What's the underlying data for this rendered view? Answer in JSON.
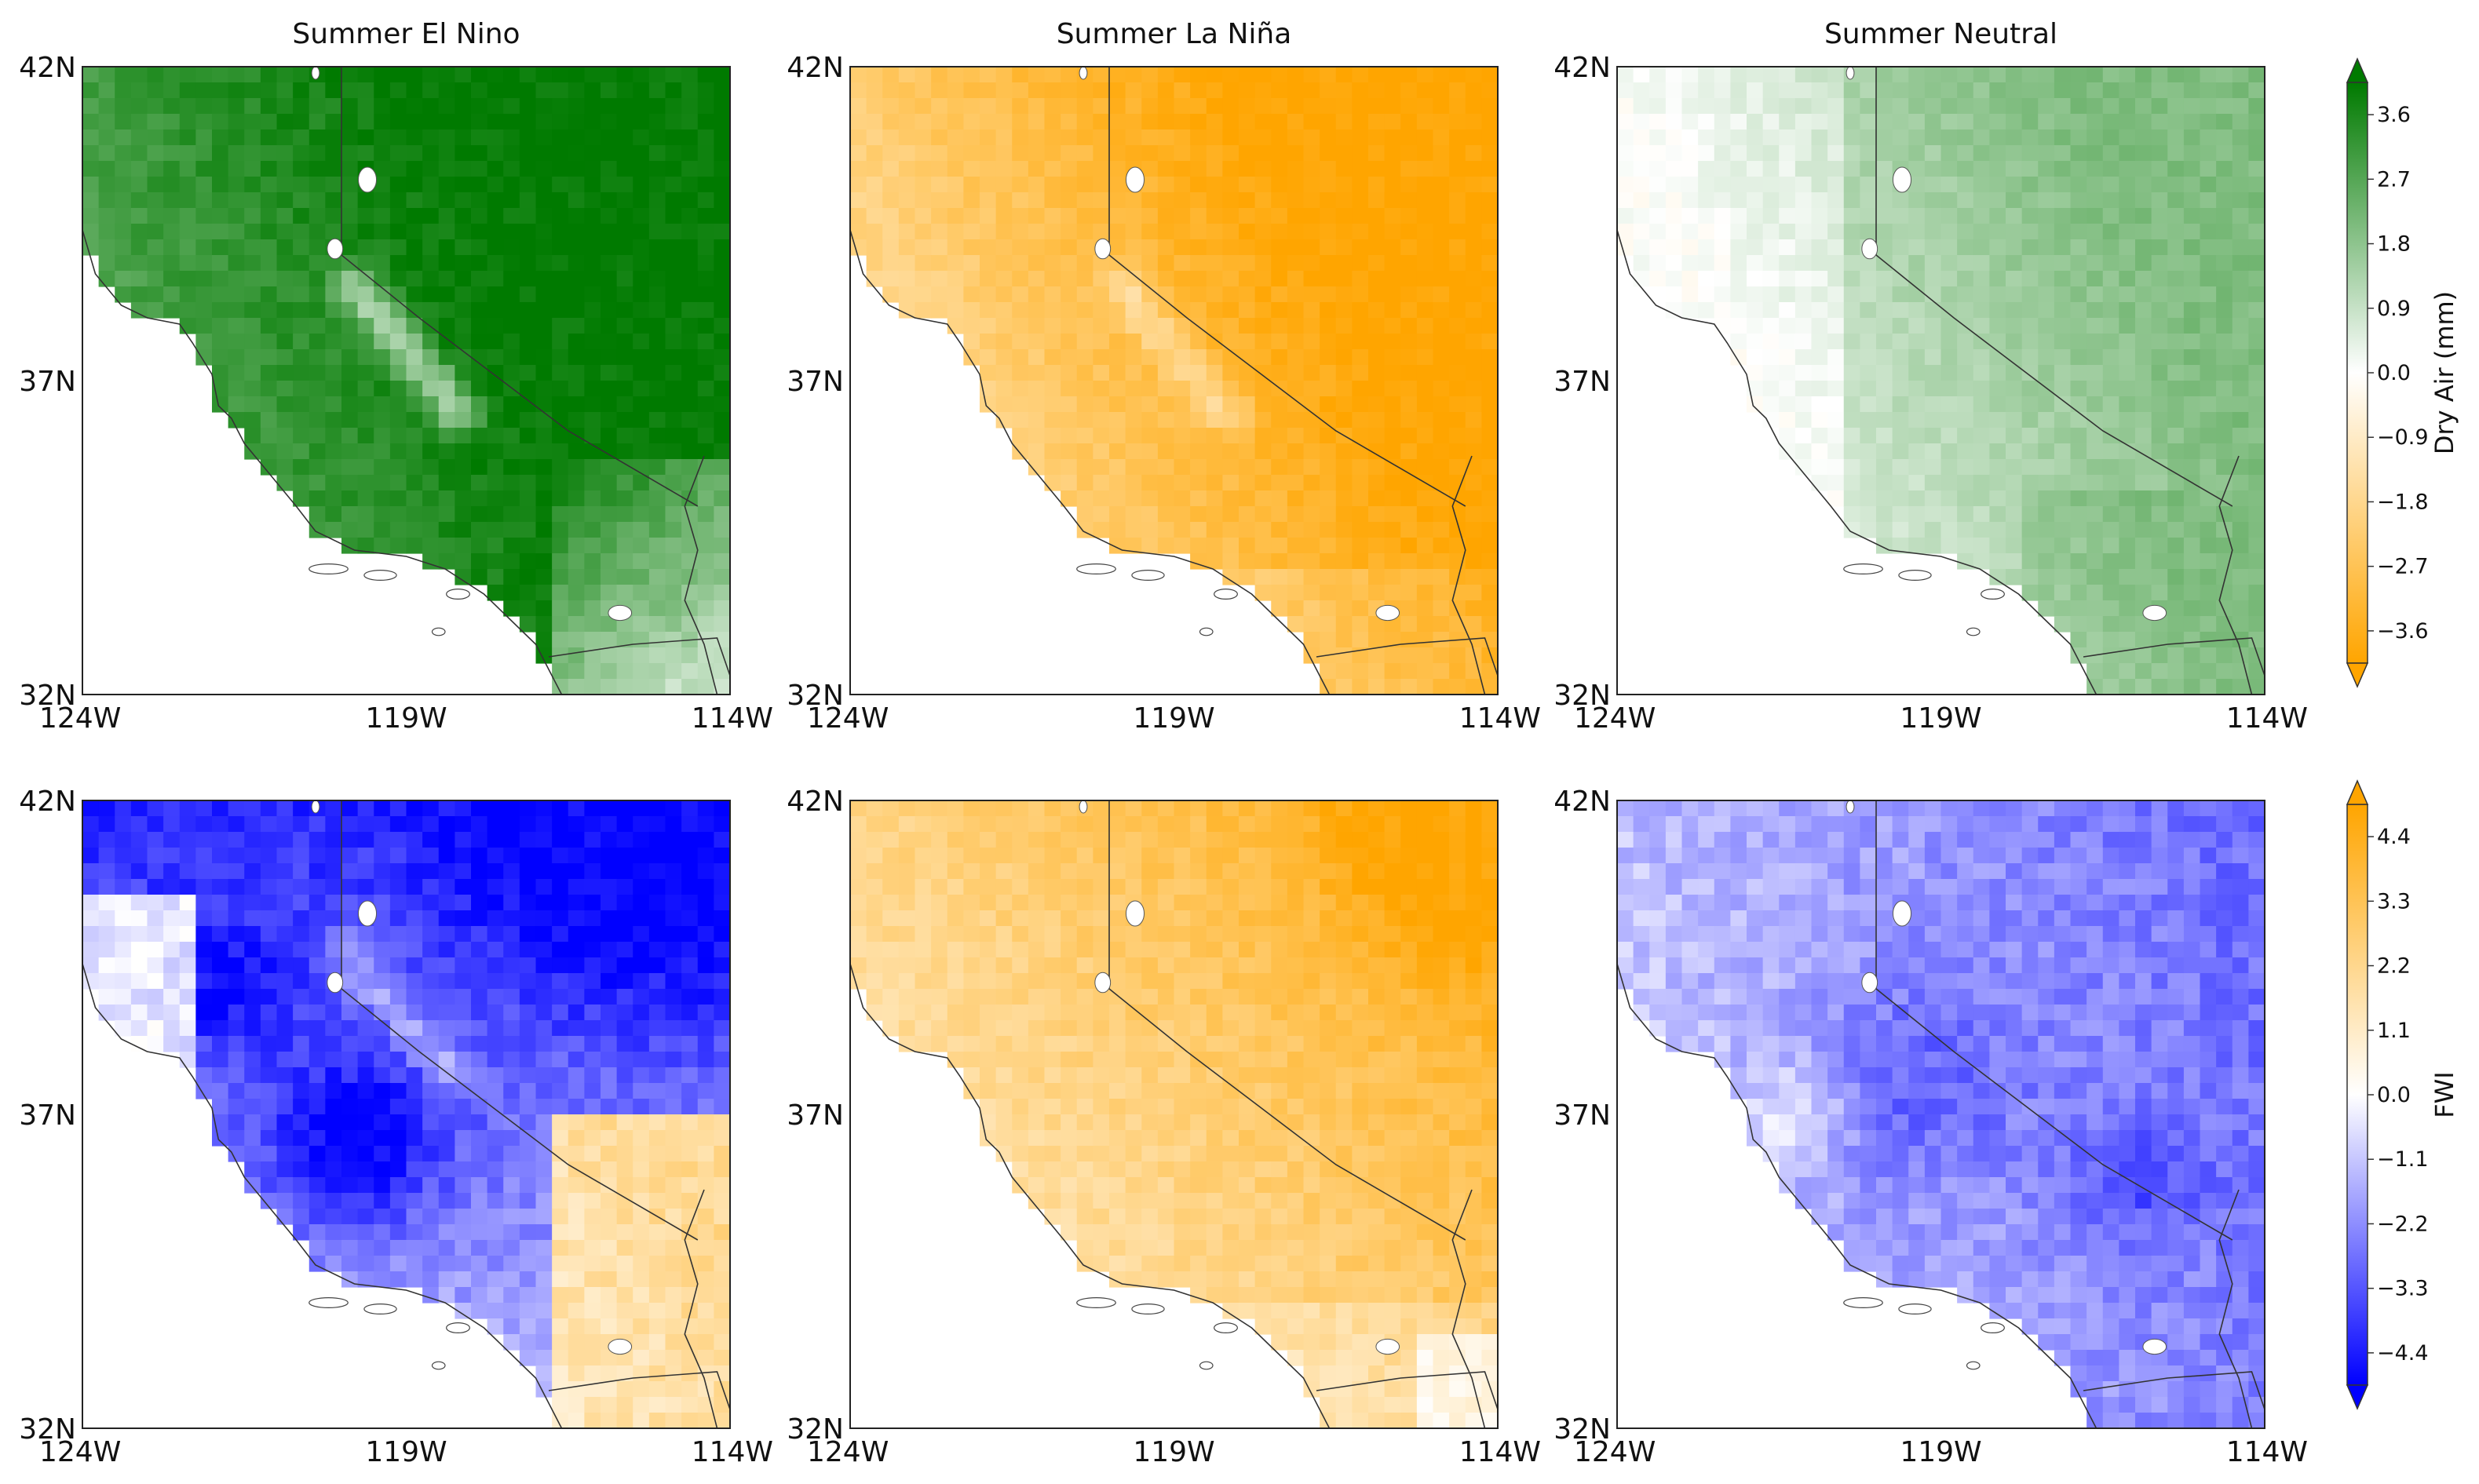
{
  "panels": [
    {
      "title": "Summer El Nino",
      "row": 0,
      "col": 0,
      "variable": "dry_air",
      "pattern": "elnino_dry"
    },
    {
      "title": "Summer La Niña",
      "row": 0,
      "col": 1,
      "variable": "dry_air",
      "pattern": "lanina_dry"
    },
    {
      "title": "Summer Neutral",
      "row": 0,
      "col": 2,
      "variable": "dry_air",
      "pattern": "neutral_dry"
    },
    {
      "title": "",
      "row": 1,
      "col": 0,
      "variable": "fwi",
      "pattern": "elnino_fwi"
    },
    {
      "title": "",
      "row": 1,
      "col": 1,
      "variable": "fwi",
      "pattern": "lanina_fwi"
    },
    {
      "title": "",
      "row": 1,
      "col": 2,
      "variable": "fwi",
      "pattern": "neutral_fwi"
    }
  ],
  "axes": {
    "lon_ticks": [
      "124W",
      "119W",
      "114W"
    ],
    "lat_ticks": [
      "42N",
      "37N",
      "32N"
    ],
    "lon_range": [
      -124,
      -114
    ],
    "lat_range": [
      32,
      42
    ]
  },
  "colorbars": [
    {
      "label": "Dry Air (mm)",
      "ticks": [
        "3.6",
        "2.7",
        "1.8",
        "0.9",
        "0.0",
        "−0.9",
        "−1.8",
        "−2.7",
        "−3.6"
      ],
      "range": [
        -4.05,
        4.05
      ],
      "colors": {
        "positive": "#007a00",
        "neutral": "#ffffff",
        "negative": "#ffa500"
      }
    },
    {
      "label": "FWI",
      "ticks": [
        "4.4",
        "3.3",
        "2.2",
        "1.1",
        "0.0",
        "−1.1",
        "−2.2",
        "−3.3",
        "−4.4"
      ],
      "range": [
        -4.95,
        4.95
      ],
      "colors": {
        "positive": "#ffa500",
        "neutral": "#ffffff",
        "negative": "#0000ff"
      }
    }
  ],
  "chart_data": {
    "type": "heatmap",
    "layout": "2 rows x 3 columns of maps",
    "titles": [
      "Summer El Nino",
      "Summer La Niña",
      "Summer Neutral"
    ],
    "region_lon": [
      -124,
      -114
    ],
    "region_lat": [
      32,
      42
    ],
    "rows": [
      {
        "variable": "Dry Air (mm)",
        "scale": [
          -3.6,
          3.6
        ]
      },
      {
        "variable": "FWI",
        "scale": [
          -4.4,
          4.4
        ]
      }
    ]
  }
}
